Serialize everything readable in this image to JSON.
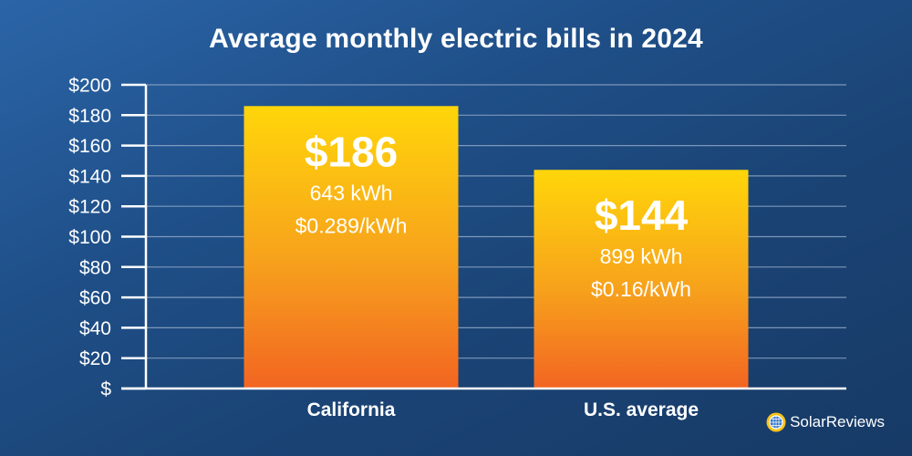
{
  "chart_data": {
    "type": "bar",
    "title": "Average monthly electric bills in 2024",
    "xlabel": "",
    "ylabel": "",
    "ylim": [
      0,
      200
    ],
    "yticks": [
      0,
      20,
      40,
      60,
      80,
      100,
      120,
      140,
      160,
      180,
      200
    ],
    "ytick_labels": [
      "$",
      "$20",
      "$40",
      "$60",
      "$80",
      "$100",
      "$120",
      "$140",
      "$160",
      "$180",
      "$200"
    ],
    "grid": true,
    "categories": [
      "California",
      "U.S. average"
    ],
    "values": [
      186,
      144
    ],
    "bar_labels": [
      {
        "amount": "$186",
        "usage": "643 kWh",
        "rate": "$0.289/kWh"
      },
      {
        "amount": "$144",
        "usage": "899 kWh",
        "rate": "$0.16/kWh"
      }
    ],
    "colors": {
      "bar_top": "#ffd60a",
      "bar_bottom": "#f26522",
      "background": "#1f4f88",
      "grid": "#8ea6c6"
    }
  },
  "brand": {
    "name": "SolarReviews",
    "icon": "sun-globe-logo-icon"
  }
}
